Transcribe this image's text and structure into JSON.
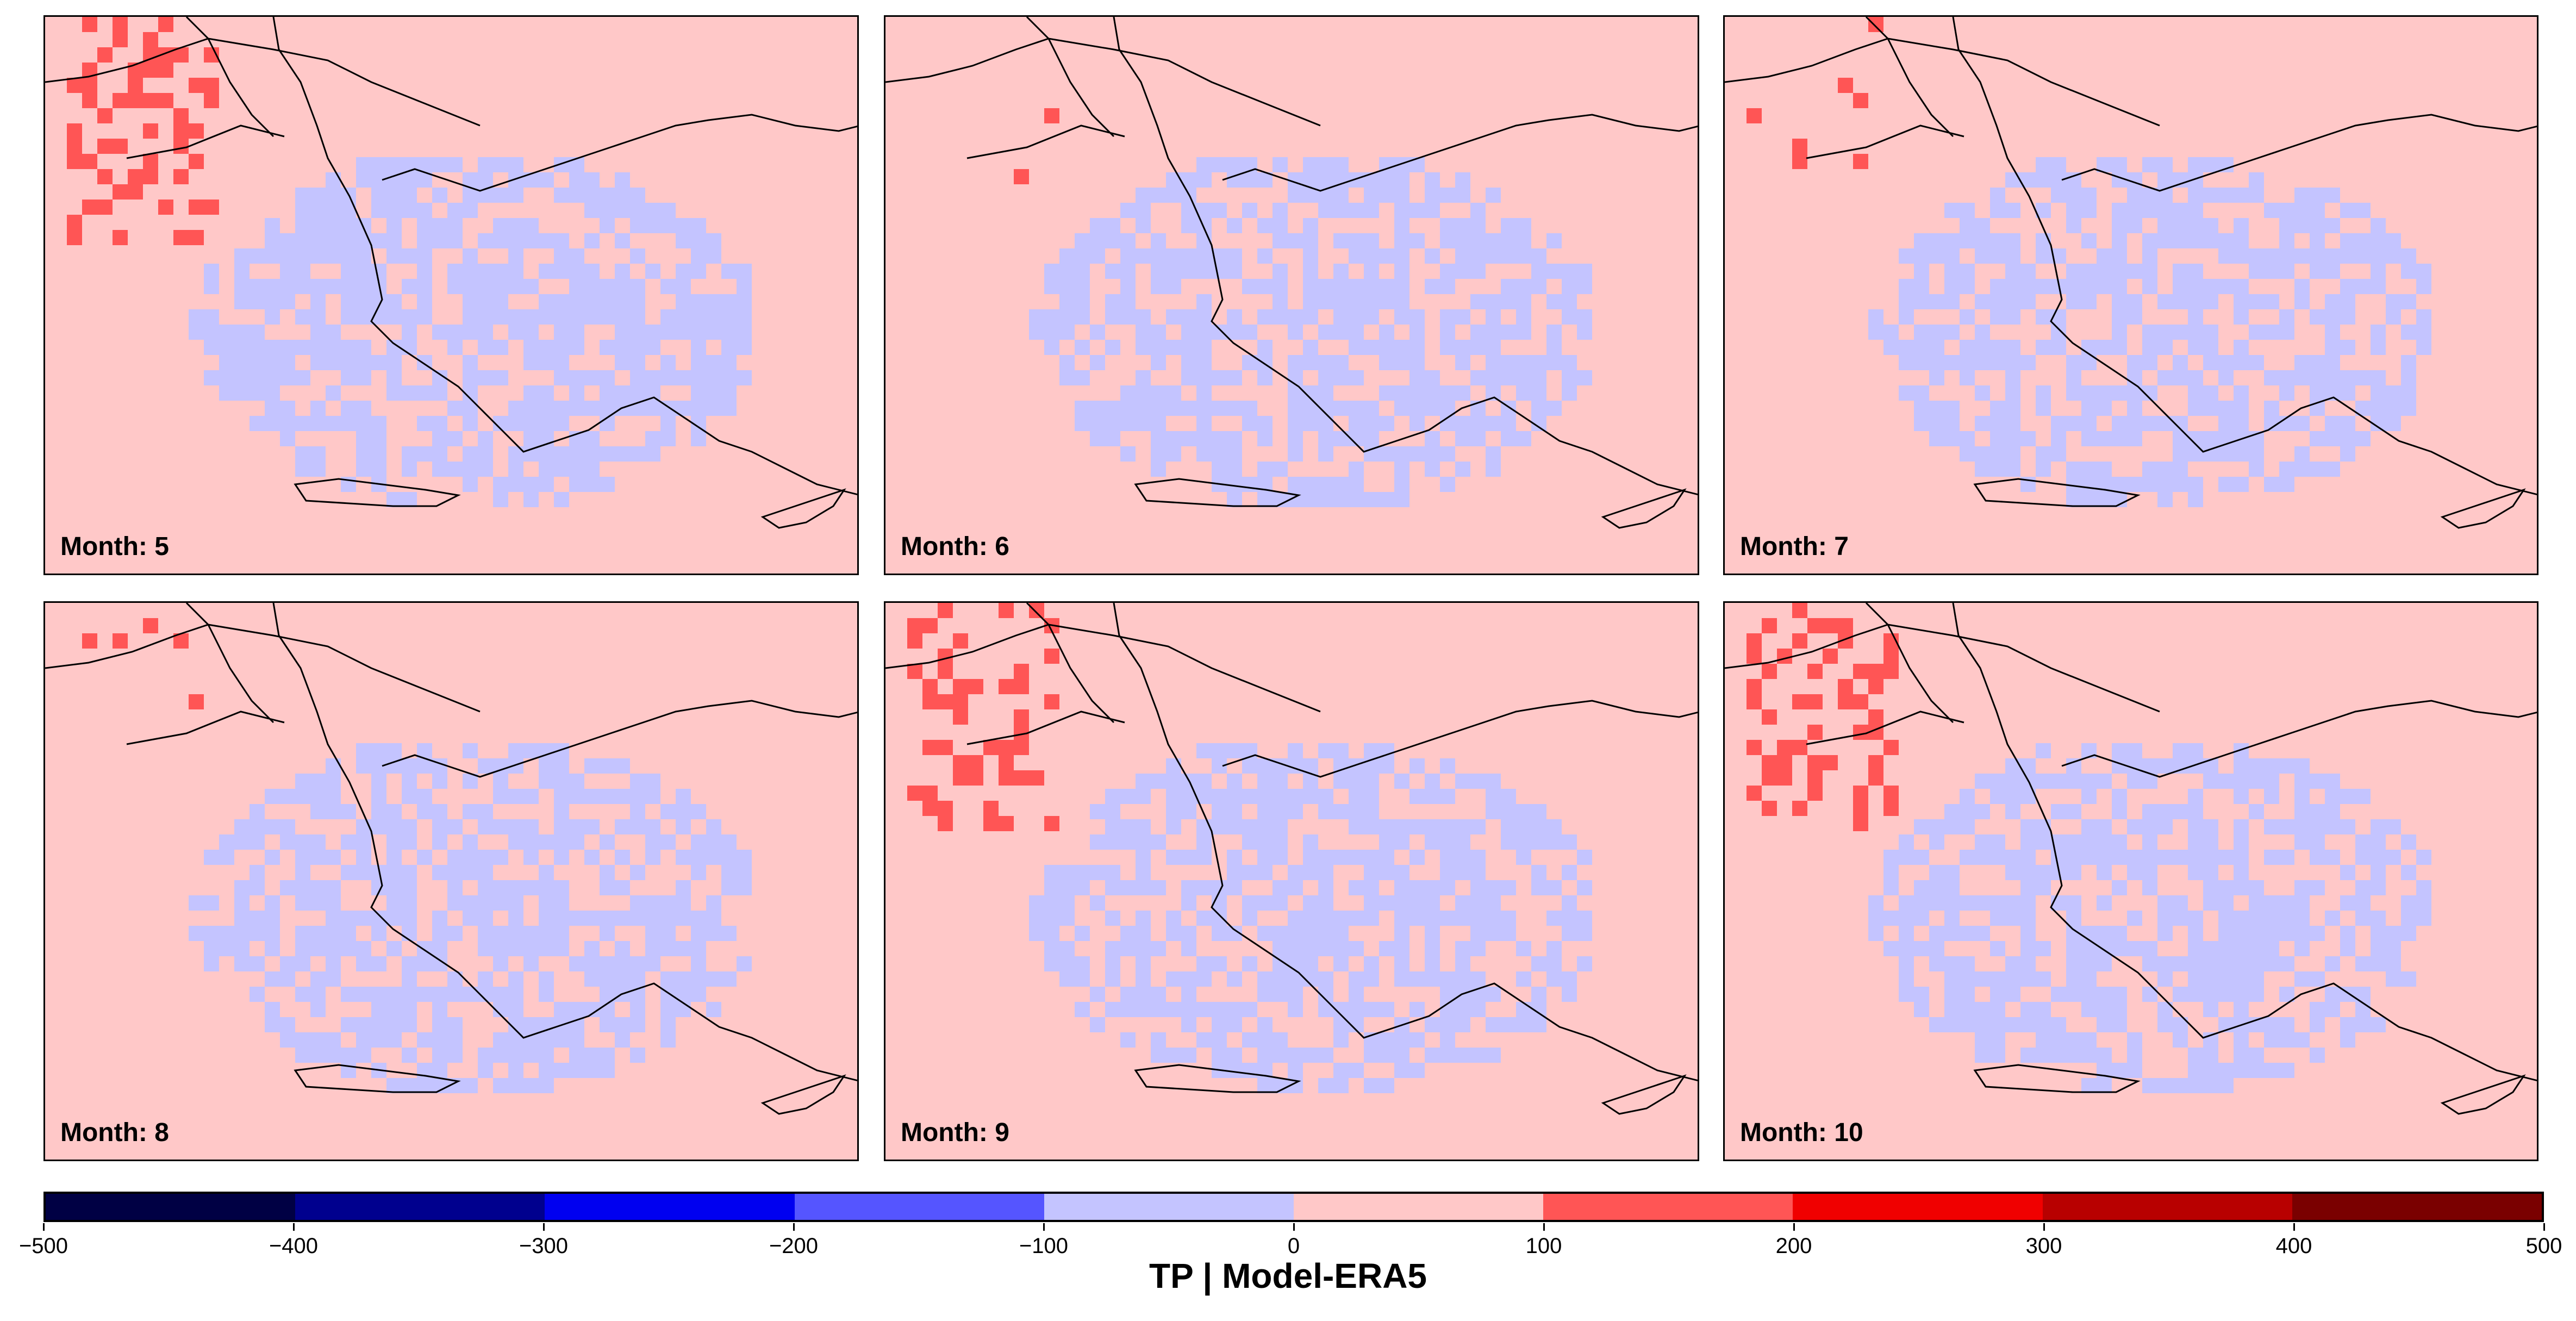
{
  "panels": [
    {
      "label": "Month: 5"
    },
    {
      "label": "Month: 6"
    },
    {
      "label": "Month: 7"
    },
    {
      "label": "Month: 8"
    },
    {
      "label": "Month: 9"
    },
    {
      "label": "Month: 10"
    }
  ],
  "colorbar": {
    "title": "TP | Model-ERA5",
    "ticks": [
      "−500",
      "−400",
      "−300",
      "−200",
      "−100",
      "0",
      "100",
      "200",
      "300",
      "400",
      "500"
    ],
    "colors": [
      "#000044",
      "#00008e",
      "#0000f0",
      "#5555ff",
      "#c4c4ff",
      "#ffc8c8",
      "#ff5555",
      "#f00000",
      "#b80000",
      "#7a0000"
    ]
  },
  "colors": {
    "neutral_positive": "#ffc8c8",
    "neutral_negative": "#c4c4ff"
  }
}
